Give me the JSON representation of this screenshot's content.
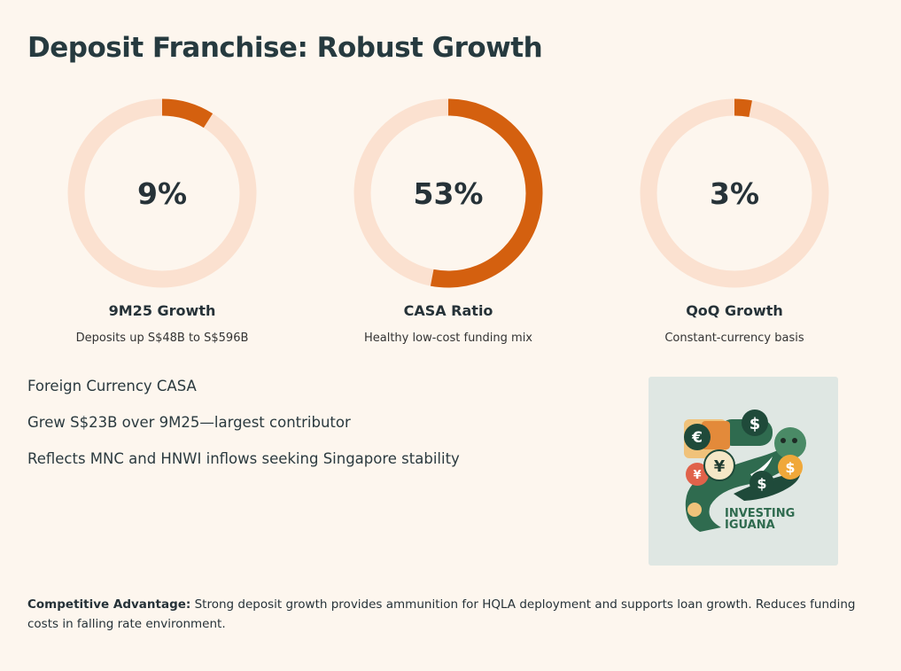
{
  "page": {
    "title": "Deposit Franchise: Robust Growth"
  },
  "chart_data": [
    {
      "type": "pie",
      "value": 9,
      "display": "9%",
      "label": "9M25 Growth",
      "subtitle": "Deposits up S$48B to S$596B"
    },
    {
      "type": "pie",
      "value": 53,
      "display": "53%",
      "label": "CASA Ratio",
      "subtitle": "Healthy low-cost funding mix"
    },
    {
      "type": "pie",
      "value": 3,
      "display": "3%",
      "label": "QoQ Growth",
      "subtitle": "Constant-currency basis"
    }
  ],
  "colors": {
    "accent": "#d4600f",
    "track": "#fbe1d0",
    "background": "#fdf6ee"
  },
  "bullets": [
    "Foreign Currency CASA",
    "Grew S$23B over 9M25—largest contributor",
    "Reflects MNC and HNWI inflows seeking Singapore stability"
  ],
  "logo": {
    "line1": "INVESTING",
    "line2": "IGUANA",
    "symbols": [
      "€",
      "$",
      "¥",
      "¥",
      "$",
      "$"
    ]
  },
  "footer": {
    "lead": "Competitive Advantage:",
    "text": " Strong deposit growth provides ammunition for HQLA deployment and supports loan growth. Reduces funding costs in falling rate environment."
  }
}
